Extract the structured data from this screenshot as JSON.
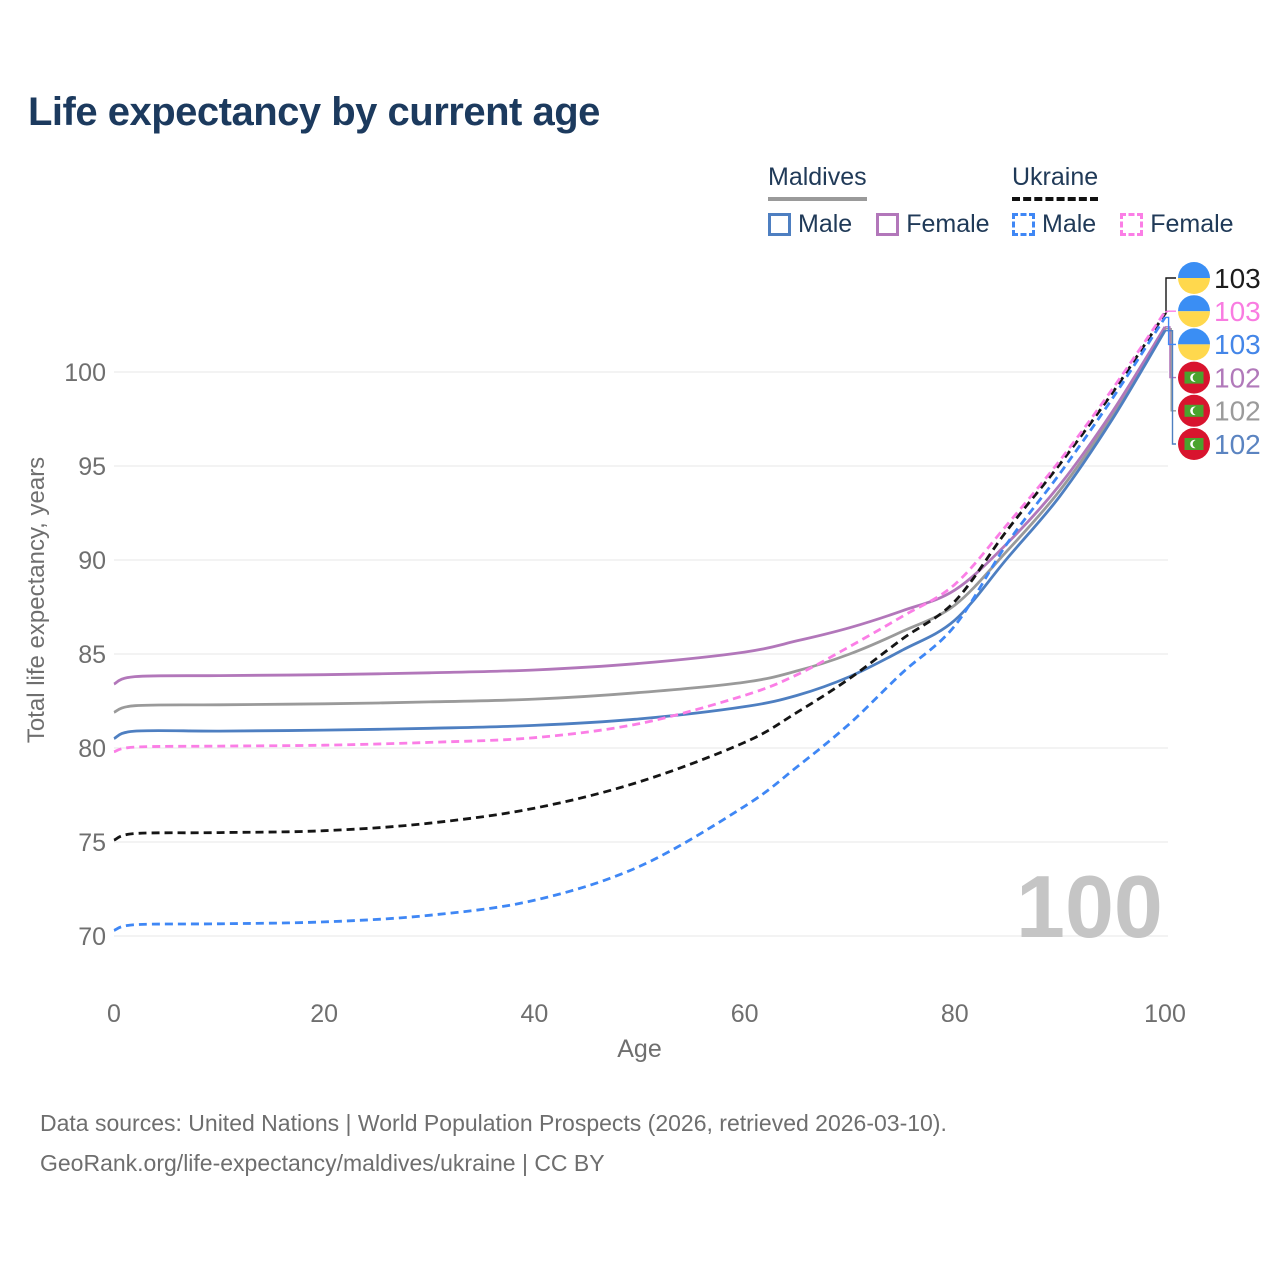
{
  "title": "Life expectancy by current age",
  "watermark": "100",
  "legend": {
    "groups": [
      {
        "name": "Maldives",
        "line_style": "solid",
        "underline_color": "#9a9a9a",
        "items": [
          {
            "label": "Male",
            "color": "#4e7fc1",
            "dashed": false
          },
          {
            "label": "Female",
            "color": "#b277ba",
            "dashed": false
          }
        ]
      },
      {
        "name": "Ukraine",
        "line_style": "dashed",
        "underline_color": "#111111",
        "items": [
          {
            "label": "Male",
            "color": "#3f87f5",
            "dashed": true
          },
          {
            "label": "Female",
            "color": "#fb7ee6",
            "dashed": true
          }
        ]
      }
    ]
  },
  "chart_data": {
    "type": "line",
    "title": "Life expectancy by current age",
    "xlabel": "Age",
    "ylabel": "Total life expectancy, years",
    "xlim": [
      0,
      100
    ],
    "ylim": [
      70,
      100
    ],
    "xticks": [
      0,
      20,
      40,
      60,
      80,
      100
    ],
    "yticks": [
      70,
      75,
      80,
      85,
      90,
      95,
      100
    ],
    "grid": "horizontal-only",
    "legend_position": "top-right",
    "axis_text_color": "#6f6f6f",
    "gridline_color": "#ececec",
    "x": [
      0,
      2,
      10,
      20,
      30,
      40,
      50,
      60,
      65,
      70,
      75,
      80,
      85,
      90,
      95,
      100
    ],
    "series": [
      {
        "id": "maldives-both",
        "country": "Maldives",
        "sex": "Both",
        "color": "#9a9a9a",
        "dashed": false,
        "values": [
          81.9,
          82.25,
          82.3,
          82.35,
          82.45,
          82.6,
          82.95,
          83.5,
          84.1,
          85.0,
          86.2,
          87.6,
          90.5,
          93.7,
          97.7,
          102.3
        ],
        "end_label": {
          "text": "102",
          "color": "#9b9b9b",
          "flag": "maldives",
          "row": 4
        }
      },
      {
        "id": "maldives-female",
        "country": "Maldives",
        "sex": "Female",
        "color": "#b277ba",
        "dashed": false,
        "values": [
          83.4,
          83.8,
          83.85,
          83.9,
          84.0,
          84.15,
          84.5,
          85.1,
          85.7,
          86.4,
          87.3,
          88.4,
          90.9,
          94.0,
          97.9,
          102.4
        ],
        "end_label": {
          "text": "102",
          "color": "#b179ba",
          "flag": "maldives",
          "row": 3
        }
      },
      {
        "id": "maldives-male",
        "country": "Maldives",
        "sex": "Male",
        "color": "#4e7fc1",
        "dashed": false,
        "values": [
          80.5,
          80.9,
          80.9,
          80.95,
          81.05,
          81.2,
          81.55,
          82.2,
          82.8,
          83.8,
          85.2,
          86.8,
          90.1,
          93.4,
          97.5,
          102.2
        ],
        "end_label": {
          "text": "102",
          "color": "#5b84c1",
          "flag": "maldives",
          "row": 5
        }
      },
      {
        "id": "ukraine-both",
        "country": "Ukraine",
        "sex": "Both",
        "color": "#151515",
        "dashed": true,
        "values": [
          75.1,
          75.45,
          75.5,
          75.6,
          76.0,
          76.8,
          78.2,
          80.3,
          81.9,
          83.7,
          85.8,
          87.8,
          91.6,
          95.1,
          98.9,
          103.1
        ],
        "end_label": {
          "text": "103",
          "color": "#1c1c1c",
          "flag": "ukraine",
          "row": 0
        }
      },
      {
        "id": "ukraine-male",
        "country": "Ukraine",
        "sex": "Male",
        "color": "#3f87f5",
        "dashed": true,
        "values": [
          70.3,
          70.6,
          70.65,
          70.75,
          71.1,
          71.9,
          73.7,
          76.9,
          79.0,
          81.3,
          84.0,
          86.5,
          90.9,
          94.6,
          98.6,
          102.9
        ],
        "end_label": {
          "text": "103",
          "color": "#4486e8",
          "flag": "ukraine",
          "row": 2
        }
      },
      {
        "id": "ukraine-female",
        "country": "Ukraine",
        "sex": "Female",
        "color": "#fb7ee6",
        "dashed": true,
        "values": [
          79.8,
          80.05,
          80.1,
          80.15,
          80.3,
          80.55,
          81.3,
          82.8,
          83.9,
          85.4,
          87.0,
          88.7,
          91.9,
          95.3,
          99.1,
          103.2
        ],
        "end_label": {
          "text": "103",
          "color": "#f97ce1",
          "flag": "ukraine",
          "row": 1
        }
      }
    ],
    "flag_colors": {
      "ukraine_blue": "#3a8ef4",
      "ukraine_yellow": "#ffd84d",
      "maldives_red": "#d8142e",
      "maldives_green": "#4ba32e",
      "maldives_crescent": "#ffffff"
    }
  },
  "footer": {
    "line1": "Data sources: United Nations | World Population Prospects (2026, retrieved 2026-03-10).",
    "line2": "GeoRank.org/life-expectancy/maldives/ukraine | CC BY"
  }
}
